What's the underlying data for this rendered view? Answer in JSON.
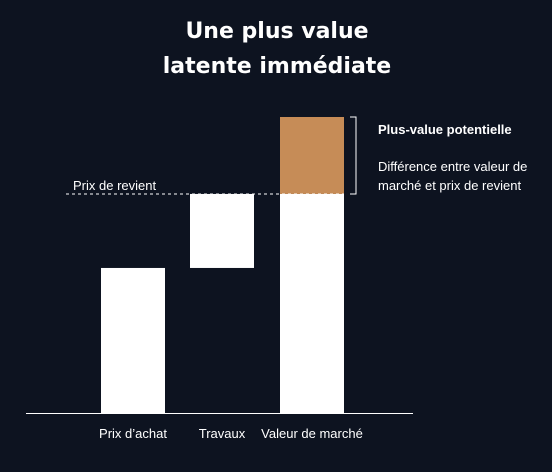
{
  "chart_data": {
    "type": "bar",
    "subtype": "waterfall",
    "title": [
      "Une plus value",
      "latente immédiate"
    ],
    "xlabel": "",
    "ylabel": "",
    "grid": false,
    "legend": "none",
    "ylim": [
      0,
      100
    ],
    "categories": [
      "Prix d’achat",
      "Travaux",
      "Valeur de marché"
    ],
    "series": [
      {
        "role": "base",
        "color": "#ffffff",
        "values": [
          {
            "from": 0,
            "to": 49
          },
          {
            "from": 49,
            "to": 74
          },
          {
            "from": 0,
            "to": 74
          }
        ]
      },
      {
        "role": "gain",
        "color": "#c68c57",
        "values": [
          null,
          null,
          {
            "from": 74,
            "to": 100
          }
        ]
      }
    ],
    "reference_line": {
      "label": "Prix de revient",
      "value": 74,
      "style": "dashed"
    },
    "annotation": {
      "title": "Plus-value potentielle",
      "lines": [
        "Différence entre valeur de",
        "marché et prix de revient"
      ],
      "bracket_from": 74,
      "bracket_to": 100
    }
  },
  "colors": {
    "background": "#0d1320",
    "bar": "#ffffff",
    "gain": "#c68c57",
    "text": "#ffffff"
  }
}
